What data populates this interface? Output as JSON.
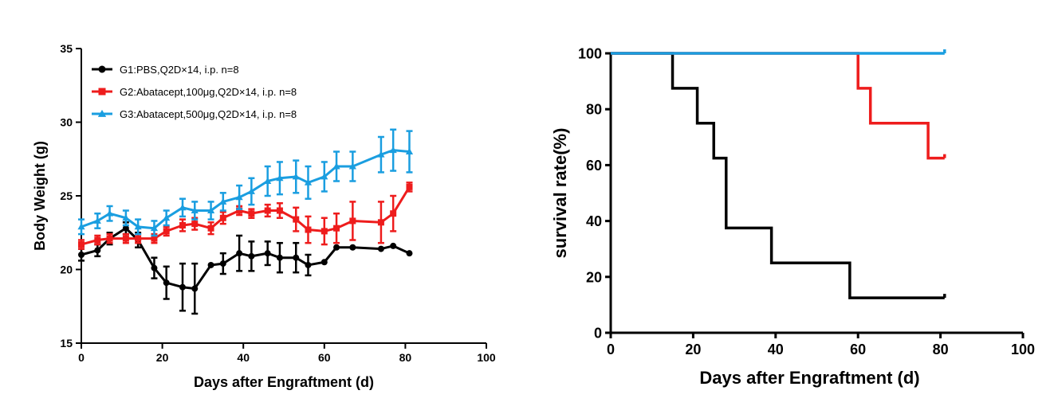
{
  "chart_data": [
    {
      "type": "line",
      "xlabel": "Days after Engraftment (d)",
      "ylabel": "Body Weight (g)",
      "xlim": [
        0,
        100
      ],
      "ylim": [
        15,
        35
      ],
      "xticks": [
        "0",
        "20",
        "40",
        "60",
        "80",
        "100"
      ],
      "yticks": [
        "15",
        "20",
        "25",
        "30",
        "35"
      ],
      "legend_position": "top-left",
      "grid": false,
      "series": [
        {
          "name": "G1:PBS,Q2D×14, i.p. n=8",
          "color": "#000000",
          "marker": "circle",
          "x": [
            0,
            4,
            7,
            11,
            14,
            18,
            21,
            25,
            28,
            32,
            35,
            39,
            42,
            46,
            49,
            53,
            56,
            60,
            63,
            67,
            74,
            77,
            81
          ],
          "y": [
            21.0,
            21.3,
            22.1,
            22.8,
            22.0,
            20.1,
            19.1,
            18.8,
            18.7,
            20.3,
            20.4,
            21.1,
            20.9,
            21.1,
            20.8,
            20.8,
            20.3,
            20.5,
            21.5,
            21.5,
            21.4,
            21.6,
            21.1
          ],
          "err": [
            0.4,
            0.4,
            0.4,
            0.4,
            0.5,
            0.7,
            1.1,
            1.6,
            1.7,
            0.0,
            0.7,
            1.2,
            1.0,
            0.8,
            1.0,
            1.0,
            0.7,
            0.0,
            0.0,
            0.0,
            0.0,
            0.0,
            0.0
          ]
        },
        {
          "name": "G2:Abatacept,100μg,Q2D×14, i.p. n=8",
          "color": "#ee1c1c",
          "marker": "square",
          "x": [
            0,
            4,
            7,
            11,
            14,
            18,
            21,
            25,
            28,
            32,
            35,
            39,
            42,
            46,
            49,
            53,
            56,
            60,
            63,
            67,
            74,
            77,
            81
          ],
          "y": [
            21.7,
            22.0,
            22.1,
            22.1,
            22.1,
            22.1,
            22.6,
            23.0,
            23.1,
            22.8,
            23.5,
            24.0,
            23.8,
            24.0,
            24.0,
            23.4,
            22.7,
            22.6,
            22.8,
            23.3,
            23.2,
            23.8,
            25.6
          ],
          "err": [
            0.3,
            0.3,
            0.3,
            0.3,
            0.3,
            0.3,
            0.3,
            0.4,
            0.4,
            0.4,
            0.4,
            0.3,
            0.3,
            0.4,
            0.5,
            0.8,
            0.9,
            0.9,
            1.0,
            1.3,
            1.4,
            1.2,
            0.3
          ]
        },
        {
          "name": "G3:Abatacept,500μg,Q2D×14, i.p. n=8",
          "color": "#1a9ee0",
          "marker": "triangle",
          "x": [
            0,
            4,
            7,
            11,
            14,
            18,
            21,
            25,
            28,
            32,
            35,
            39,
            42,
            46,
            49,
            53,
            56,
            60,
            63,
            67,
            74,
            77,
            81
          ],
          "y": [
            22.9,
            23.3,
            23.8,
            23.5,
            22.9,
            22.8,
            23.5,
            24.2,
            24.0,
            24.0,
            24.6,
            24.9,
            25.3,
            26.0,
            26.2,
            26.3,
            25.9,
            26.3,
            27.0,
            27.0,
            27.8,
            28.1,
            28.0
          ],
          "err": [
            0.5,
            0.5,
            0.5,
            0.5,
            0.5,
            0.5,
            0.5,
            0.6,
            0.6,
            0.6,
            0.6,
            0.8,
            0.9,
            1.0,
            1.1,
            1.1,
            1.1,
            1.0,
            1.0,
            1.0,
            1.2,
            1.4,
            1.4
          ]
        }
      ]
    },
    {
      "type": "line",
      "step": true,
      "xlabel": "Days after Engraftment (d)",
      "ylabel": "survival rate(%)",
      "xlim": [
        0,
        100
      ],
      "ylim": [
        0,
        100
      ],
      "xticks": [
        "0",
        "20",
        "40",
        "60",
        "80",
        "100"
      ],
      "yticks": [
        "0",
        "20",
        "40",
        "60",
        "80",
        "100"
      ],
      "grid": false,
      "series": [
        {
          "color": "#000000",
          "x": [
            0,
            15,
            21,
            25,
            28,
            39,
            58,
            81
          ],
          "y": [
            100,
            87.5,
            75,
            62.5,
            37.5,
            25,
            12.5,
            12.5
          ]
        },
        {
          "color": "#ee1c1c",
          "x": [
            0,
            60,
            63,
            77,
            81
          ],
          "y": [
            100,
            87.5,
            75,
            62.5,
            62.5
          ]
        },
        {
          "color": "#1a9ee0",
          "x": [
            0,
            81
          ],
          "y": [
            100,
            100
          ]
        }
      ]
    }
  ]
}
